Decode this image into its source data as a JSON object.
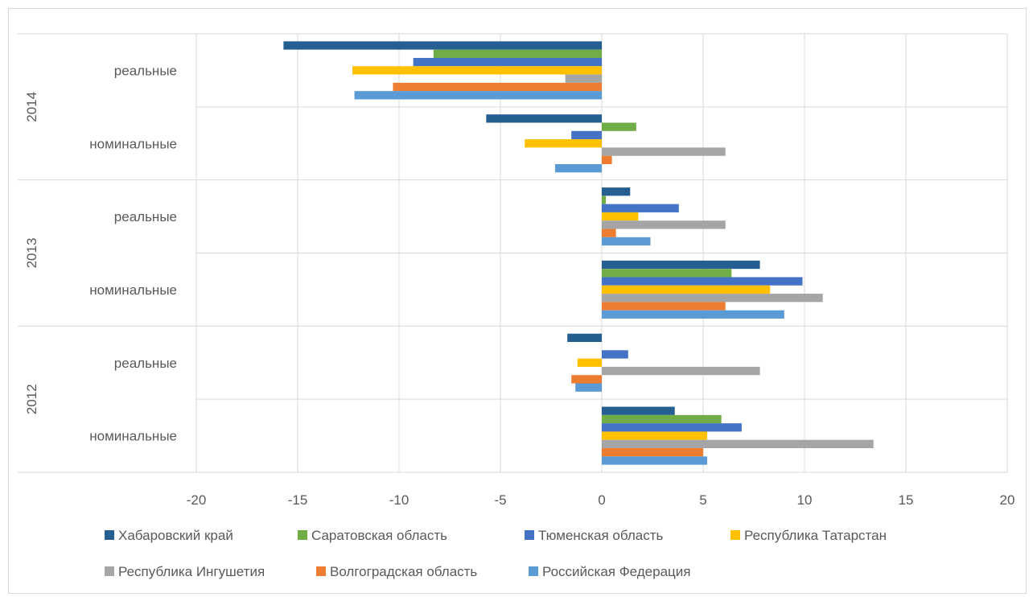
{
  "chart_data": {
    "type": "bar",
    "orientation": "horizontal",
    "title": "",
    "xlabel": "",
    "ylabel": "",
    "xlim": [
      -20,
      20
    ],
    "x_ticks": [
      -20,
      -15,
      -10,
      -5,
      0,
      5,
      10,
      15,
      20
    ],
    "grid": true,
    "legend_position": "bottom",
    "groups": [
      {
        "year": "2014",
        "categories": [
          "реальные",
          "номинальные"
        ]
      },
      {
        "year": "2013",
        "categories": [
          "реальные",
          "номинальные"
        ]
      },
      {
        "year": "2012",
        "categories": [
          "реальные",
          "номинальные"
        ]
      }
    ],
    "series": [
      {
        "name": "Хабаровский край",
        "color": "#255e91",
        "values": [
          -15.7,
          -5.7,
          1.4,
          7.8,
          -1.7,
          3.6
        ]
      },
      {
        "name": "Саратовская область",
        "color": "#70ad47",
        "values": [
          -8.3,
          1.7,
          0.2,
          6.4,
          0.0,
          5.9
        ]
      },
      {
        "name": "Тюменская область",
        "color": "#4472c4",
        "values": [
          -9.3,
          -1.5,
          3.8,
          9.9,
          1.3,
          6.9
        ]
      },
      {
        "name": "Республика Татарстан",
        "color": "#ffc000",
        "values": [
          -12.3,
          -3.8,
          1.8,
          8.3,
          -1.2,
          5.2
        ]
      },
      {
        "name": "Республика Ингушетия",
        "color": "#a5a5a5",
        "values": [
          -1.8,
          6.1,
          6.1,
          10.9,
          7.8,
          13.4
        ]
      },
      {
        "name": "Волгоградская область",
        "color": "#ed7d31",
        "values": [
          -10.3,
          0.5,
          0.7,
          6.1,
          -1.5,
          5.0
        ]
      },
      {
        "name": "Российская Федерация",
        "color": "#5b9bd5",
        "values": [
          -12.2,
          -2.3,
          2.4,
          9.0,
          -1.3,
          5.2
        ]
      }
    ]
  }
}
